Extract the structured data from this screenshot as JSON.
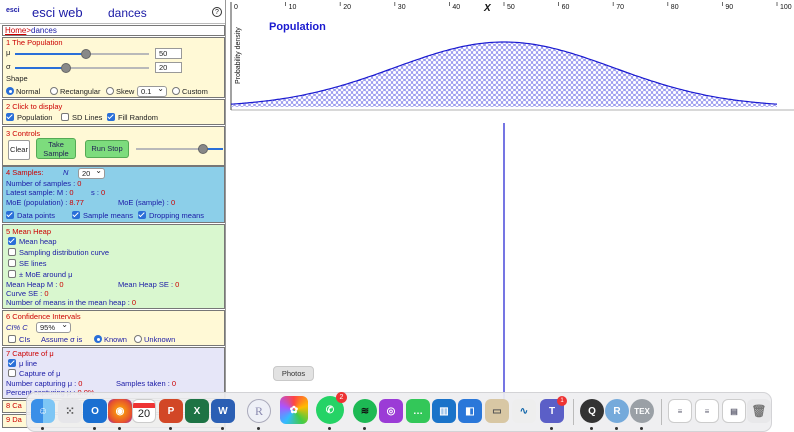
{
  "app": {
    "logo": "esci",
    "title": "esci web",
    "module": "dances",
    "help_icon": "?"
  },
  "breadcrumb": {
    "home": "Home",
    "sep": ">",
    "current": "dances"
  },
  "population": {
    "header": "1 The Population",
    "mu_label": "μ",
    "mu_value": "50",
    "sigma_label": "σ",
    "sigma_value": "20",
    "shape_label": "Shape",
    "shapes": [
      "Normal",
      "Rectangular",
      "Skew",
      "Custom"
    ],
    "skew_value": "0.1",
    "selected_shape": "Normal"
  },
  "display": {
    "header": "2 Click to display",
    "items": [
      {
        "label": "Population",
        "checked": true
      },
      {
        "label": "SD Lines",
        "checked": false
      },
      {
        "label": "Fill Random",
        "checked": true
      }
    ]
  },
  "controls": {
    "header": "3 Controls",
    "clear": "Clear",
    "take_line1": "Take",
    "take_line2": "Sample",
    "run": "Run Stop"
  },
  "samples": {
    "header": "4 Samples:",
    "n_label": "N",
    "n_value": "20",
    "count_label": "Number of samples : ",
    "count_value": "0",
    "latest_label": "Latest sample: M : ",
    "latest_m": "0",
    "s_label": "s : ",
    "s_value": "0",
    "moe_pop_label": "MoE (population) : ",
    "moe_pop": "8.77",
    "moe_sample_label": "MoE (sample) : ",
    "moe_sample": "0",
    "checks": [
      "Data points",
      "Sample means",
      "Dropping means"
    ]
  },
  "heap": {
    "header": "5 Mean Heap",
    "items": [
      {
        "label": "Mean heap",
        "checked": true
      },
      {
        "label": "Sampling distribution curve",
        "checked": false
      },
      {
        "label": "SE lines",
        "checked": false
      },
      {
        "label": "± MoE around μ",
        "checked": false
      }
    ],
    "heap_m_label": "Mean Heap M : ",
    "heap_m": "0",
    "heap_se_label": "Mean Heap SE : ",
    "heap_se": "0",
    "curve_se_label": "Curve SE : ",
    "curve_se": "0",
    "count_label": "Number of means in the mean heap : ",
    "count_value": "0"
  },
  "ci": {
    "header": "6 Confidence Intervals",
    "level_label": "CI% C",
    "level_value": "95%",
    "cis_label": "CIs",
    "assume_label": "Assume σ is",
    "known": "Known",
    "unknown": "Unknown"
  },
  "capture": {
    "header": "7 Capture of μ",
    "mu_line": "μ line",
    "capture_mu": "Capture of μ",
    "capturing_label": "Number capturing μ : ",
    "capturing": "0",
    "taken_label": "Samples taken : ",
    "taken": "0",
    "percent_label": "Percent capturing μ : ",
    "percent": "0.0%"
  },
  "cut_sections": {
    "eight": "8 Ca",
    "nine": "9 Da"
  },
  "dock": {
    "tooltip": "Photos",
    "badge_whatsapp": "2",
    "badge_teams": "1",
    "calendar_day": "20"
  },
  "colors": {
    "accent": "#2a6fd8",
    "header_red": "#cc0000",
    "curve_blue": "#1a1ad0",
    "panel_yellow": "#fff9d6",
    "panel_blue": "#8ccfe9",
    "panel_green": "#d9f7cf",
    "panel_lav": "#e6e6f8"
  },
  "chart_data": {
    "type": "area",
    "title": "Population",
    "ylabel": "Probability density",
    "xlabel": "X",
    "x_ticks": [
      0,
      10,
      20,
      30,
      40,
      50,
      60,
      70,
      80,
      90,
      100
    ],
    "xlim": [
      0,
      100
    ],
    "mu": 50,
    "sigma": 20,
    "mean_line_x": 50,
    "bottom_tick": "100"
  }
}
